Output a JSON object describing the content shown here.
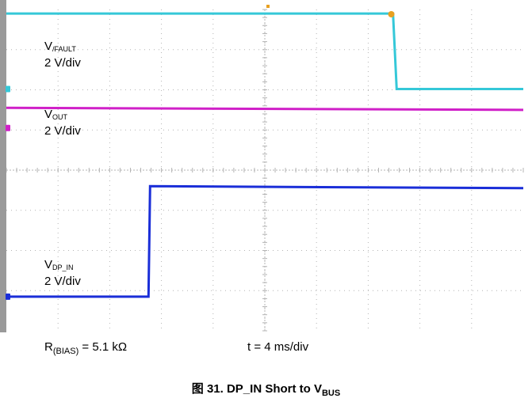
{
  "chart_data": {
    "type": "line",
    "title": "",
    "xlabel": "",
    "ylabel": "",
    "x_divisions": 10,
    "y_divisions": 8,
    "xlim": [
      0,
      10
    ],
    "ylim": [
      0,
      8
    ],
    "series": [
      {
        "name": "V(FAULT)",
        "color": "#35c8d8",
        "points": [
          [
            0,
            7.9
          ],
          [
            7.48,
            7.9
          ],
          [
            7.55,
            6.02
          ],
          [
            10,
            6.02
          ]
        ],
        "label_main": "V",
        "label_sub": "/FAULT",
        "label_scale": "2 V/div"
      },
      {
        "name": "VOUT",
        "color": "#d020c8",
        "points": [
          [
            0,
            5.55
          ],
          [
            10,
            5.5
          ]
        ],
        "label_main": "V",
        "label_sub": "OUT",
        "label_scale": "2 V/div"
      },
      {
        "name": "VDP_IN",
        "color": "#1a2ed8",
        "points": [
          [
            0,
            0.85
          ],
          [
            2.75,
            0.85
          ],
          [
            2.78,
            3.6
          ],
          [
            10,
            3.55
          ]
        ],
        "label_main": "V",
        "label_sub": "DP_IN",
        "label_scale": "2 V/div"
      }
    ],
    "annotations": {
      "r_bias_main": "R",
      "r_bias_sub": "(BIAS)",
      "r_bias_value": " = 5.1 kΩ",
      "time_base": "t = 4 ms/div"
    }
  },
  "caption": {
    "text": "图 31. DP_IN Short to V",
    "sub": "BUS"
  },
  "markers": {
    "trigger_label": "T"
  },
  "colors": {
    "grid": "#b4b4b4",
    "left_bar": "#9a9a9a",
    "trigger": "#e8a020"
  }
}
